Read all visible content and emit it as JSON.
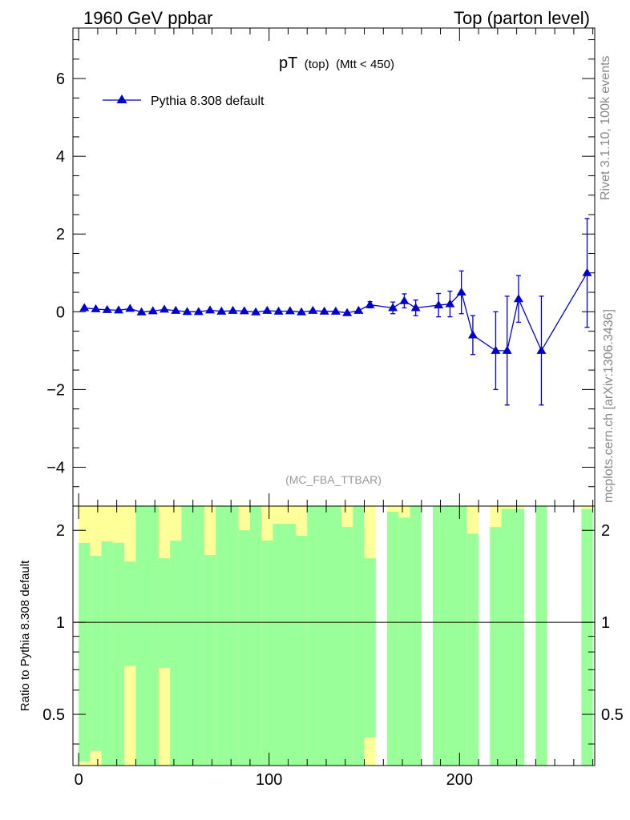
{
  "header": {
    "left_label": "1960 GeV ppbar",
    "right_label": "Top (parton level)"
  },
  "side": {
    "rivet_label": "Rivet 3.1.10,  100k events",
    "mcplots_label": "mcplots.cern.ch [arXiv:1306.3436]"
  },
  "chart_data": {
    "type": "line",
    "title_main": "pT",
    "title_sub1": "(top)",
    "title_sub2": "(Mtt < 450)",
    "watermark": "(MC_FBA_TTBAR)",
    "ratio_ylabel": "Ratio to Pythia 8.308 default",
    "legend_placement": "top-left",
    "colors": {
      "series": "#0000cc",
      "band_inner": "#99ff99",
      "band_outer": "#ffff99"
    },
    "xlim": [
      -3,
      271
    ],
    "ylim": [
      -5,
      7.3
    ],
    "ratio_ylim": [
      0.34,
      2.4
    ],
    "x_ticks": [
      0,
      100,
      200
    ],
    "y_ticks": [
      -4,
      -2,
      0,
      2,
      4,
      6
    ],
    "y_tick_labels": [
      "−4",
      "−2",
      "0",
      "2",
      "4",
      "6"
    ],
    "ratio_ticks": [
      0.5,
      1,
      2
    ],
    "ratio_tick_labels": [
      "0.5",
      "1",
      "2"
    ],
    "series": [
      {
        "name": "Pythia 8.308 default",
        "points": [
          {
            "x": 3,
            "y": 0.1,
            "err": 0.03
          },
          {
            "x": 9,
            "y": 0.07,
            "err": 0.03
          },
          {
            "x": 15,
            "y": 0.05,
            "err": 0.03
          },
          {
            "x": 21,
            "y": 0.04,
            "err": 0.03
          },
          {
            "x": 27,
            "y": 0.08,
            "err": 0.04
          },
          {
            "x": 33,
            "y": -0.01,
            "err": 0.04
          },
          {
            "x": 39,
            "y": 0.02,
            "err": 0.04
          },
          {
            "x": 45,
            "y": 0.06,
            "err": 0.04
          },
          {
            "x": 51,
            "y": 0.03,
            "err": 0.04
          },
          {
            "x": 57,
            "y": 0.0,
            "err": 0.04
          },
          {
            "x": 63,
            "y": 0.0,
            "err": 0.04
          },
          {
            "x": 69,
            "y": 0.04,
            "err": 0.04
          },
          {
            "x": 75,
            "y": 0.01,
            "err": 0.04
          },
          {
            "x": 81,
            "y": 0.03,
            "err": 0.04
          },
          {
            "x": 87,
            "y": 0.02,
            "err": 0.04
          },
          {
            "x": 93,
            "y": -0.01,
            "err": 0.04
          },
          {
            "x": 99,
            "y": 0.03,
            "err": 0.04
          },
          {
            "x": 105,
            "y": 0.01,
            "err": 0.04
          },
          {
            "x": 111,
            "y": 0.02,
            "err": 0.04
          },
          {
            "x": 117,
            "y": -0.01,
            "err": 0.04
          },
          {
            "x": 123,
            "y": 0.03,
            "err": 0.04
          },
          {
            "x": 129,
            "y": 0.01,
            "err": 0.04
          },
          {
            "x": 135,
            "y": 0.01,
            "err": 0.05
          },
          {
            "x": 141,
            "y": -0.03,
            "err": 0.05
          },
          {
            "x": 147,
            "y": 0.03,
            "err": 0.05
          },
          {
            "x": 153,
            "y": 0.18,
            "err": 0.08
          },
          {
            "x": 165,
            "y": 0.1,
            "err": 0.15
          },
          {
            "x": 171,
            "y": 0.28,
            "err": 0.18
          },
          {
            "x": 177,
            "y": 0.1,
            "err": 0.2
          },
          {
            "x": 189,
            "y": 0.17,
            "err": 0.3
          },
          {
            "x": 195,
            "y": 0.2,
            "err": 0.33
          },
          {
            "x": 201,
            "y": 0.5,
            "err": 0.55
          },
          {
            "x": 207,
            "y": -0.6,
            "err": 0.5
          },
          {
            "x": 219,
            "y": -1.0,
            "err": 1.0
          },
          {
            "x": 225,
            "y": -1.0,
            "err": 1.4
          },
          {
            "x": 231,
            "y": 0.33,
            "err": 0.6
          },
          {
            "x": 243,
            "y": -1.0,
            "err": 1.4
          },
          {
            "x": 267,
            "y": 1.0,
            "err": 1.4
          }
        ]
      }
    ],
    "ratio_bands": [
      {
        "x0": 0,
        "x1": 6,
        "inner": [
          0.35,
          1.82
        ],
        "outer": [
          0.34,
          2.4
        ]
      },
      {
        "x0": 6,
        "x1": 12,
        "inner": [
          0.38,
          1.65
        ],
        "outer": [
          0.34,
          2.4
        ]
      },
      {
        "x0": 12,
        "x1": 18,
        "inner": [
          0.34,
          1.84
        ],
        "outer": [
          0.34,
          2.4
        ]
      },
      {
        "x0": 18,
        "x1": 24,
        "inner": [
          0.34,
          1.82
        ],
        "outer": [
          0.34,
          2.4
        ]
      },
      {
        "x0": 24,
        "x1": 30,
        "inner": [
          0.72,
          1.58
        ],
        "outer": [
          0.34,
          2.4
        ]
      },
      {
        "x0": 30,
        "x1": 42,
        "inner": [
          0.34,
          2.4
        ],
        "outer": [
          0.34,
          2.4
        ]
      },
      {
        "x0": 42,
        "x1": 48,
        "inner": [
          0.71,
          1.62
        ],
        "outer": [
          0.34,
          2.4
        ]
      },
      {
        "x0": 48,
        "x1": 54,
        "inner": [
          0.34,
          1.85
        ],
        "outer": [
          0.34,
          2.4
        ]
      },
      {
        "x0": 54,
        "x1": 66,
        "inner": [
          0.34,
          2.4
        ],
        "outer": [
          0.34,
          2.4
        ]
      },
      {
        "x0": 66,
        "x1": 72,
        "inner": [
          0.34,
          1.66
        ],
        "outer": [
          0.34,
          2.4
        ]
      },
      {
        "x0": 72,
        "x1": 84,
        "inner": [
          0.34,
          2.4
        ],
        "outer": [
          0.34,
          2.4
        ]
      },
      {
        "x0": 84,
        "x1": 90,
        "inner": [
          0.34,
          2.0
        ],
        "outer": [
          0.34,
          2.4
        ]
      },
      {
        "x0": 90,
        "x1": 96,
        "inner": [
          0.34,
          2.4
        ],
        "outer": [
          0.34,
          2.4
        ]
      },
      {
        "x0": 96,
        "x1": 102,
        "inner": [
          0.34,
          1.85
        ],
        "outer": [
          0.34,
          2.4
        ]
      },
      {
        "x0": 102,
        "x1": 114,
        "inner": [
          0.34,
          2.1
        ],
        "outer": [
          0.34,
          2.4
        ]
      },
      {
        "x0": 114,
        "x1": 120,
        "inner": [
          0.34,
          1.92
        ],
        "outer": [
          0.34,
          2.4
        ]
      },
      {
        "x0": 120,
        "x1": 138,
        "inner": [
          0.34,
          2.4
        ],
        "outer": [
          0.34,
          2.4
        ]
      },
      {
        "x0": 138,
        "x1": 144,
        "inner": [
          0.34,
          2.05
        ],
        "outer": [
          0.34,
          2.4
        ]
      },
      {
        "x0": 144,
        "x1": 150,
        "inner": [
          0.34,
          2.4
        ],
        "outer": [
          0.34,
          2.4
        ]
      },
      {
        "x0": 150,
        "x1": 156,
        "inner": [
          0.42,
          1.62
        ],
        "outer": [
          0.34,
          2.4
        ]
      },
      {
        "x0": 162,
        "x1": 168,
        "inner": [
          0.34,
          2.3
        ],
        "outer": [
          0.34,
          2.4
        ]
      },
      {
        "x0": 168,
        "x1": 174,
        "inner": [
          0.34,
          2.2
        ],
        "outer": [
          0.34,
          2.4
        ]
      },
      {
        "x0": 174,
        "x1": 180,
        "inner": [
          0.34,
          2.4
        ],
        "outer": [
          0.34,
          2.4
        ]
      },
      {
        "x0": 186,
        "x1": 198,
        "inner": [
          0.34,
          2.4
        ],
        "outer": [
          0.34,
          2.4
        ]
      },
      {
        "x0": 198,
        "x1": 204,
        "inner": [
          0.34,
          2.4
        ],
        "outer": [
          0.34,
          2.4
        ]
      },
      {
        "x0": 204,
        "x1": 210,
        "inner": [
          0.34,
          1.95
        ],
        "outer": [
          0.34,
          2.4
        ]
      },
      {
        "x0": 216,
        "x1": 222,
        "inner": [
          0.34,
          2.05
        ],
        "outer": [
          0.34,
          2.4
        ]
      },
      {
        "x0": 222,
        "x1": 234,
        "inner": [
          0.34,
          2.35
        ],
        "outer": [
          0.34,
          2.4
        ]
      },
      {
        "x0": 240,
        "x1": 246,
        "inner": [
          0.34,
          2.4
        ],
        "outer": [
          0.34,
          2.4
        ]
      },
      {
        "x0": 264,
        "x1": 270,
        "inner": [
          0.34,
          2.35
        ],
        "outer": [
          0.34,
          2.4
        ]
      }
    ]
  }
}
